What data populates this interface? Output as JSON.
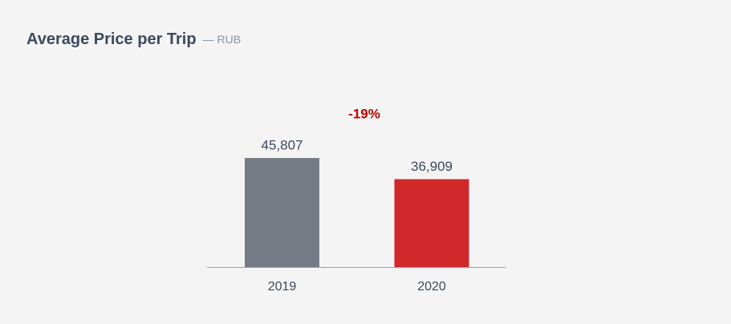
{
  "chart_data": {
    "type": "bar",
    "title": "Average Price per Trip",
    "subtitle": "— RUB",
    "annotation": "-19%",
    "categories": [
      "2019",
      "2020"
    ],
    "values": [
      45807,
      36909
    ],
    "value_labels": [
      "45,807",
      "36,909"
    ],
    "colors": [
      "#757b84",
      "#d0282b"
    ]
  }
}
